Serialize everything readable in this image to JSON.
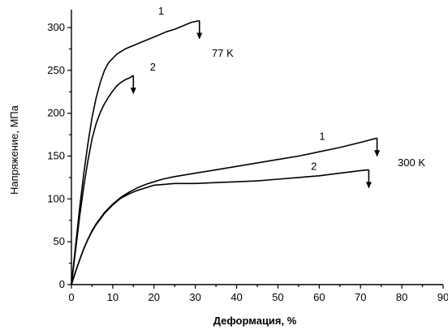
{
  "chart_data": {
    "type": "line",
    "xlabel": "Деформация, %",
    "ylabel": "Напряжение, МПа",
    "xlim": [
      0,
      90
    ],
    "ylim": [
      0,
      320
    ],
    "x_ticks": [
      0,
      10,
      20,
      30,
      40,
      50,
      60,
      70,
      80,
      90
    ],
    "y_ticks": [
      0,
      50,
      100,
      150,
      200,
      250,
      300
    ],
    "grid": false,
    "legend": "none",
    "series": [
      {
        "name": "",
        "x": [
          0,
          1,
          2,
          3,
          4,
          5,
          6,
          7,
          8,
          9,
          10,
          11,
          12,
          13,
          14,
          15,
          17,
          19,
          21,
          23,
          25,
          27,
          29,
          31
        ],
        "y": [
          0,
          45,
          90,
          130,
          165,
          195,
          218,
          236,
          250,
          259,
          264,
          269,
          272,
          275,
          277,
          279,
          283,
          287,
          291,
          295,
          298,
          302,
          306,
          308
        ],
        "end_arrow": true
      },
      {
        "name": "",
        "x": [
          0,
          1,
          2,
          3,
          4,
          5,
          6,
          7,
          8,
          9,
          10,
          11,
          12,
          13,
          14,
          15
        ],
        "y": [
          0,
          40,
          80,
          115,
          145,
          170,
          188,
          201,
          211,
          219,
          226,
          232,
          236,
          239,
          241,
          244
        ],
        "end_arrow": true
      },
      {
        "name": "",
        "x": [
          0,
          1,
          2,
          3,
          4,
          5,
          6,
          8,
          10,
          12,
          14,
          16,
          18,
          20,
          22,
          25,
          30,
          35,
          40,
          45,
          50,
          55,
          60,
          65,
          70,
          74
        ],
        "y": [
          0,
          15,
          29,
          42,
          53,
          63,
          71,
          84,
          94,
          102,
          108,
          113,
          117,
          120,
          123,
          126,
          130,
          134,
          138,
          142,
          146,
          150,
          155,
          160,
          166,
          171
        ],
        "end_arrow": true
      },
      {
        "name": "",
        "x": [
          0,
          1,
          2,
          3,
          4,
          5,
          6,
          8,
          10,
          12,
          14,
          16,
          18,
          20,
          25,
          30,
          35,
          40,
          45,
          50,
          55,
          60,
          65,
          70,
          72
        ],
        "y": [
          0,
          15,
          29,
          42,
          53,
          62,
          70,
          83,
          93,
          101,
          106,
          110,
          113,
          116,
          118,
          118,
          119,
          120,
          121,
          123,
          125,
          127,
          130,
          133,
          134
        ],
        "end_arrow": true
      }
    ],
    "annotations": [
      {
        "text": "1",
        "x": 21,
        "y": 315
      },
      {
        "text": "77 K",
        "x": 34,
        "y": 266
      },
      {
        "text": "2",
        "x": 19,
        "y": 250
      },
      {
        "text": "1",
        "x": 60,
        "y": 169
      },
      {
        "text": "300 K",
        "x": 79,
        "y": 138
      },
      {
        "text": "2",
        "x": 58,
        "y": 134
      }
    ]
  }
}
